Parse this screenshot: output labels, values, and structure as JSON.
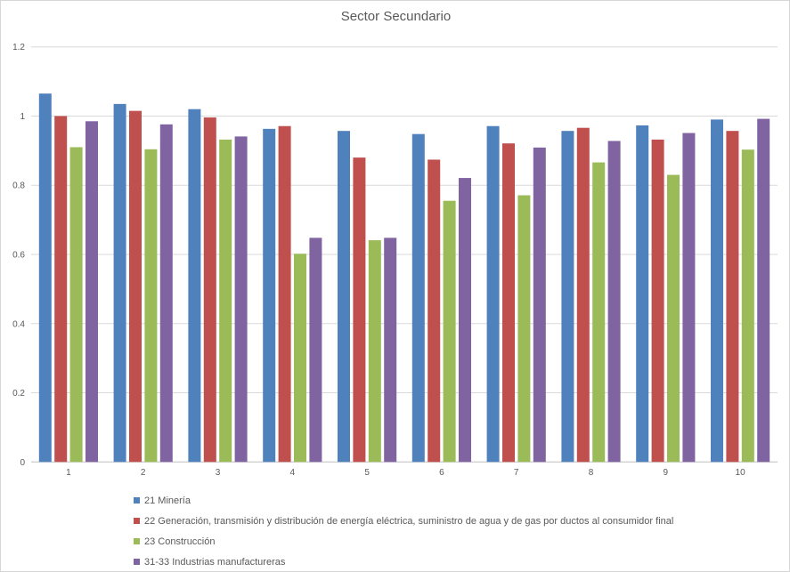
{
  "chart_title": "Sector Secundario",
  "chart_data": {
    "type": "bar",
    "title": "Sector Secundario",
    "categories": [
      "1",
      "2",
      "3",
      "4",
      "5",
      "6",
      "7",
      "8",
      "9",
      "10"
    ],
    "series": [
      {
        "name": "21 Minería",
        "color": "#4F81BD",
        "values": [
          1.065,
          1.035,
          1.02,
          0.963,
          0.957,
          0.948,
          0.971,
          0.957,
          0.973,
          0.99
        ]
      },
      {
        "name": "22 Generación, transmisión y distribución de energía eléctrica, suministro de agua y de gas por ductos al consumidor final",
        "color": "#C0504D",
        "values": [
          1.0,
          1.015,
          0.996,
          0.971,
          0.88,
          0.874,
          0.921,
          0.966,
          0.932,
          0.957
        ]
      },
      {
        "name": "23 Construcción",
        "color": "#9BBB59",
        "values": [
          0.91,
          0.904,
          0.932,
          0.602,
          0.641,
          0.755,
          0.771,
          0.866,
          0.83,
          0.903
        ]
      },
      {
        "name": "31-33 Industrias manufactureras",
        "color": "#8064A2",
        "values": [
          0.985,
          0.976,
          0.941,
          0.648,
          0.648,
          0.821,
          0.909,
          0.928,
          0.951,
          0.992
        ]
      }
    ],
    "ylim": [
      0,
      1.2
    ],
    "ytick_step": 0.2,
    "ytick_labels": [
      "0",
      "0.2",
      "0.4",
      "0.6",
      "0.8",
      "1",
      "1.2"
    ],
    "grid": true,
    "legend_position": "bottom-left",
    "gridline_color": "#D9D9D9",
    "axis_line_color": "#BFBFBF",
    "axis_text_color": "#595959"
  }
}
